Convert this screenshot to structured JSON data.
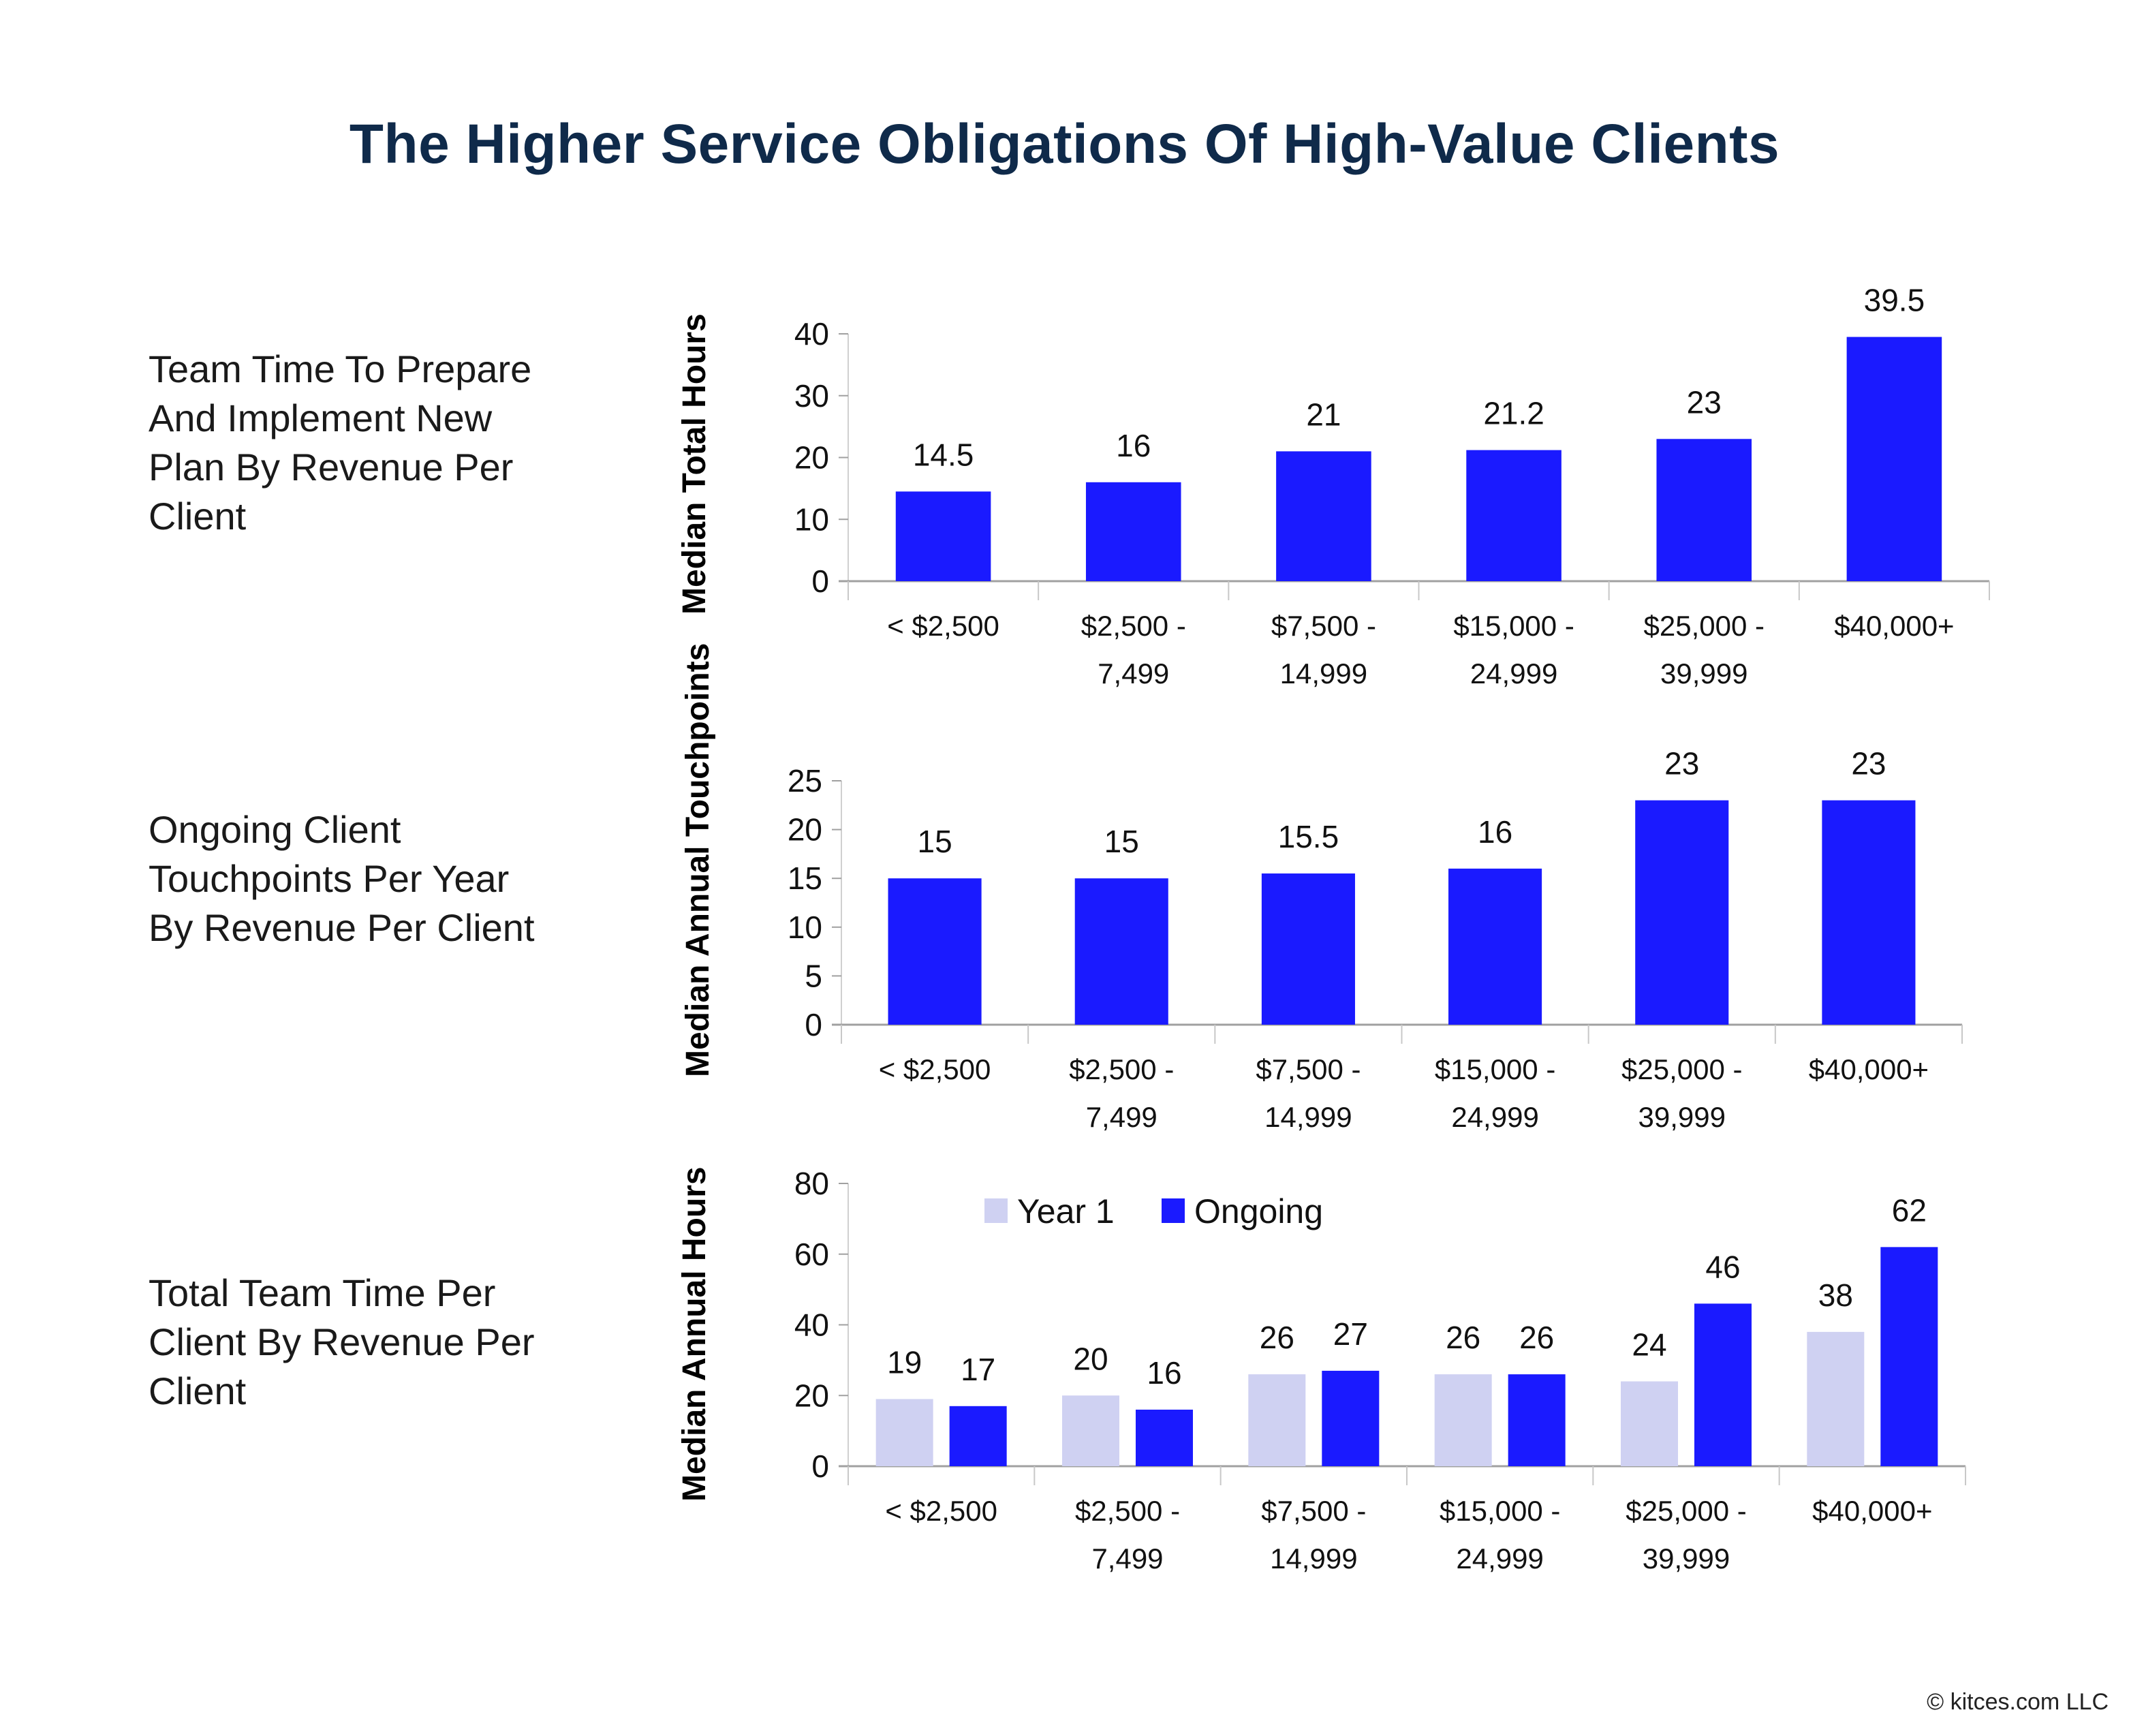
{
  "title": "The Higher Service Obligations Of High-Value Clients",
  "credit": "© kitces.com LLC",
  "colors": {
    "ongoing": "#1a1aff",
    "year1": "#cfd1f2",
    "title": "#0f2a4a",
    "axis": "#a0a0a0"
  },
  "chart_data": [
    {
      "type": "bar",
      "row_label": "Team Time To Prepare And Implement New Plan By Revenue Per Client",
      "ylabel": "Median Total Hours",
      "categories": [
        [
          "< $2,500"
        ],
        [
          "$2,500 -",
          "7,499"
        ],
        [
          "$7,500 -",
          "14,999"
        ],
        [
          "$15,000 -",
          "24,999"
        ],
        [
          "$25,000 -",
          "39,999"
        ],
        [
          "$40,000+"
        ]
      ],
      "ylim": [
        0,
        40
      ],
      "yticks": [
        0,
        10,
        20,
        30,
        40
      ],
      "series": [
        {
          "name": "Ongoing",
          "color": "#1a1aff",
          "values": [
            14.5,
            16,
            21,
            21.2,
            23,
            39.5
          ],
          "labels": [
            "14.5",
            "16",
            "21",
            "21.2",
            "23",
            "39.5"
          ]
        }
      ],
      "legend": null,
      "grid": false
    },
    {
      "type": "bar",
      "row_label": "Ongoing Client Touchpoints Per Year By Revenue Per Client",
      "ylabel": "Median Annual Touchpoints",
      "categories": [
        [
          "< $2,500"
        ],
        [
          "$2,500 -",
          "7,499"
        ],
        [
          "$7,500 -",
          "14,999"
        ],
        [
          "$15,000 -",
          "24,999"
        ],
        [
          "$25,000 -",
          "39,999"
        ],
        [
          "$40,000+"
        ]
      ],
      "ylim": [
        0,
        25
      ],
      "yticks": [
        0,
        5,
        10,
        15,
        20,
        25
      ],
      "series": [
        {
          "name": "Ongoing",
          "color": "#1a1aff",
          "values": [
            15,
            15,
            15.5,
            16,
            23,
            23
          ],
          "labels": [
            "15",
            "15",
            "15.5",
            "16",
            "23",
            "23"
          ]
        }
      ],
      "legend": null,
      "grid": false
    },
    {
      "type": "bar",
      "row_label": "Total Team Time Per Client By Revenue Per Client",
      "ylabel": "Median Annual Hours",
      "categories": [
        [
          "< $2,500"
        ],
        [
          "$2,500 -",
          "7,499"
        ],
        [
          "$7,500 -",
          "14,999"
        ],
        [
          "$15,000 -",
          "24,999"
        ],
        [
          "$25,000 -",
          "39,999"
        ],
        [
          "$40,000+"
        ]
      ],
      "ylim": [
        0,
        80
      ],
      "yticks": [
        0,
        20,
        40,
        60,
        80
      ],
      "series": [
        {
          "name": "Year 1",
          "color": "#cfd1f2",
          "values": [
            19,
            20,
            26,
            26,
            24,
            38
          ],
          "labels": [
            "19",
            "20",
            "26",
            "26",
            "24",
            "38"
          ]
        },
        {
          "name": "Ongoing",
          "color": "#1a1aff",
          "values": [
            17,
            16,
            27,
            26,
            46,
            62
          ],
          "labels": [
            "17",
            "16",
            "27",
            "26",
            "46",
            "62"
          ]
        }
      ],
      "legend": "top-left",
      "grid": false
    }
  ]
}
